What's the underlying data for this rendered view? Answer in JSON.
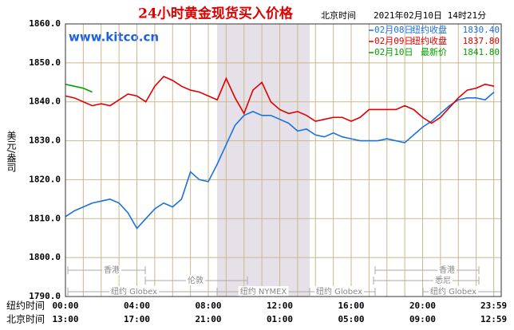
{
  "chart_data": {
    "type": "line",
    "title": "24小时黄金现货买入价格",
    "site": "www.kitco.cn",
    "time_zone_label": "北京时间",
    "timestamp": "2021年02月10日 14时21分",
    "ylabel": "美元/盎司",
    "x": [
      0,
      0.5,
      1,
      1.5,
      2,
      2.5,
      3,
      3.5,
      4,
      4.5,
      5,
      5.5,
      6,
      6.5,
      7,
      7.5,
      8,
      8.5,
      9,
      9.5,
      10,
      10.5,
      11,
      11.5,
      12,
      12.5,
      13,
      13.5,
      14,
      14.5,
      15,
      15.5,
      16,
      16.5,
      17,
      17.5,
      18,
      18.5,
      19,
      19.5,
      20,
      20.5,
      21,
      21.5,
      22,
      22.5,
      23,
      23.5,
      24
    ],
    "series": [
      {
        "name": "02月08日",
        "legend_text": "纽约收盘",
        "legend_value": {
          "value": 1830.4,
          "label": "1830.40"
        },
        "color": "#1a72e0",
        "values": [
          1810.5,
          1812,
          1813,
          1814,
          1814.5,
          1815,
          1814,
          1811.5,
          1807.5,
          1810,
          1812.5,
          1814,
          1813,
          1815,
          1822,
          1820,
          1819.5,
          1824,
          1829,
          1834,
          1836.5,
          1837.5,
          1836.5,
          1836.5,
          1835.5,
          1834.5,
          1832.5,
          1833,
          1831.5,
          1831,
          1832,
          1831,
          1830.5,
          1830,
          1830,
          1830,
          1830.5,
          1830,
          1829.5,
          1831.5,
          1833.5,
          1835,
          1837,
          1839,
          1840.5,
          1841,
          1841,
          1840.5,
          1842.5
        ]
      },
      {
        "name": "02月09日",
        "legend_text": "纽约收盘",
        "legend_value": {
          "value": 1837.8,
          "label": "1837.80"
        },
        "color": "#e00000",
        "values": [
          1841.5,
          1841,
          1840,
          1839,
          1839.5,
          1839,
          1840.5,
          1842,
          1841.5,
          1840,
          1844,
          1846.5,
          1845.5,
          1844,
          1843,
          1842.5,
          1841.5,
          1840.5,
          1846,
          1841,
          1837,
          1843,
          1845,
          1840,
          1838,
          1837,
          1837.5,
          1836.5,
          1835,
          1835.5,
          1836,
          1836,
          1835,
          1836,
          1838,
          1838,
          1838,
          1838,
          1839,
          1838,
          1836,
          1834.5,
          1836,
          1838.5,
          1841,
          1843,
          1843.5,
          1844.5,
          1844
        ]
      },
      {
        "name": "02月10日",
        "legend_text": "最新价",
        "legend_value": {
          "value": 1841.8,
          "label": "1841.80"
        },
        "color": "#00a000",
        "values": [
          1844.5,
          1844,
          1843.5,
          1842.5,
          null,
          null,
          null,
          null,
          null,
          null,
          null,
          null,
          null,
          null,
          null,
          null,
          null,
          null,
          null,
          null,
          null,
          null,
          null,
          null,
          null,
          null,
          null,
          null,
          null,
          null,
          null,
          null,
          null,
          null,
          null,
          null,
          null,
          null,
          null,
          null,
          null,
          null,
          null,
          null,
          null,
          null,
          null,
          null,
          null
        ]
      }
    ],
    "xlim": [
      0,
      24
    ],
    "xticks": [
      {
        "value": 0,
        "label": "00:00"
      },
      {
        "value": 4,
        "label": "04:00"
      },
      {
        "value": 8,
        "label": "08:00"
      },
      {
        "value": 12,
        "label": "12:00"
      },
      {
        "value": 16,
        "label": "16:00"
      },
      {
        "value": 20,
        "label": "20:00"
      },
      {
        "value": 23.983,
        "label": "23:59"
      }
    ],
    "xticks2": [
      {
        "value": 0,
        "label": "13:00"
      },
      {
        "value": 4,
        "label": "17:00"
      },
      {
        "value": 8,
        "label": "21:00"
      },
      {
        "value": 12,
        "label": "01:00"
      },
      {
        "value": 16,
        "label": "05:00"
      },
      {
        "value": 20,
        "label": "09:00"
      },
      {
        "value": 23.983,
        "label": "12:59"
      }
    ],
    "x_row_labels": [
      "纽约时间",
      "北京时间"
    ],
    "xgrid": [
      1,
      2,
      3,
      5,
      6,
      7,
      9,
      10,
      11,
      13,
      14,
      15,
      17,
      18,
      19,
      21,
      22,
      23
    ],
    "ylim": [
      1790,
      1860
    ],
    "yticks": [
      {
        "value": 1790,
        "label": "1790.0"
      },
      {
        "value": 1800,
        "label": "1800.0"
      },
      {
        "value": 1810,
        "label": "1810.0"
      },
      {
        "value": 1820,
        "label": "1820.0"
      },
      {
        "value": 1830,
        "label": "1830.0"
      },
      {
        "value": 1840,
        "label": "1840.0"
      },
      {
        "value": 1850,
        "label": "1850.0"
      },
      {
        "value": 1860,
        "label": "1860.0"
      }
    ],
    "grid": true,
    "sessions": [
      "香港",
      "香港",
      "伦敦",
      "悉尼",
      "纽约 Globex",
      "纽约 NYMEX",
      "纽约 Globex",
      "纽约 Globex"
    ]
  }
}
